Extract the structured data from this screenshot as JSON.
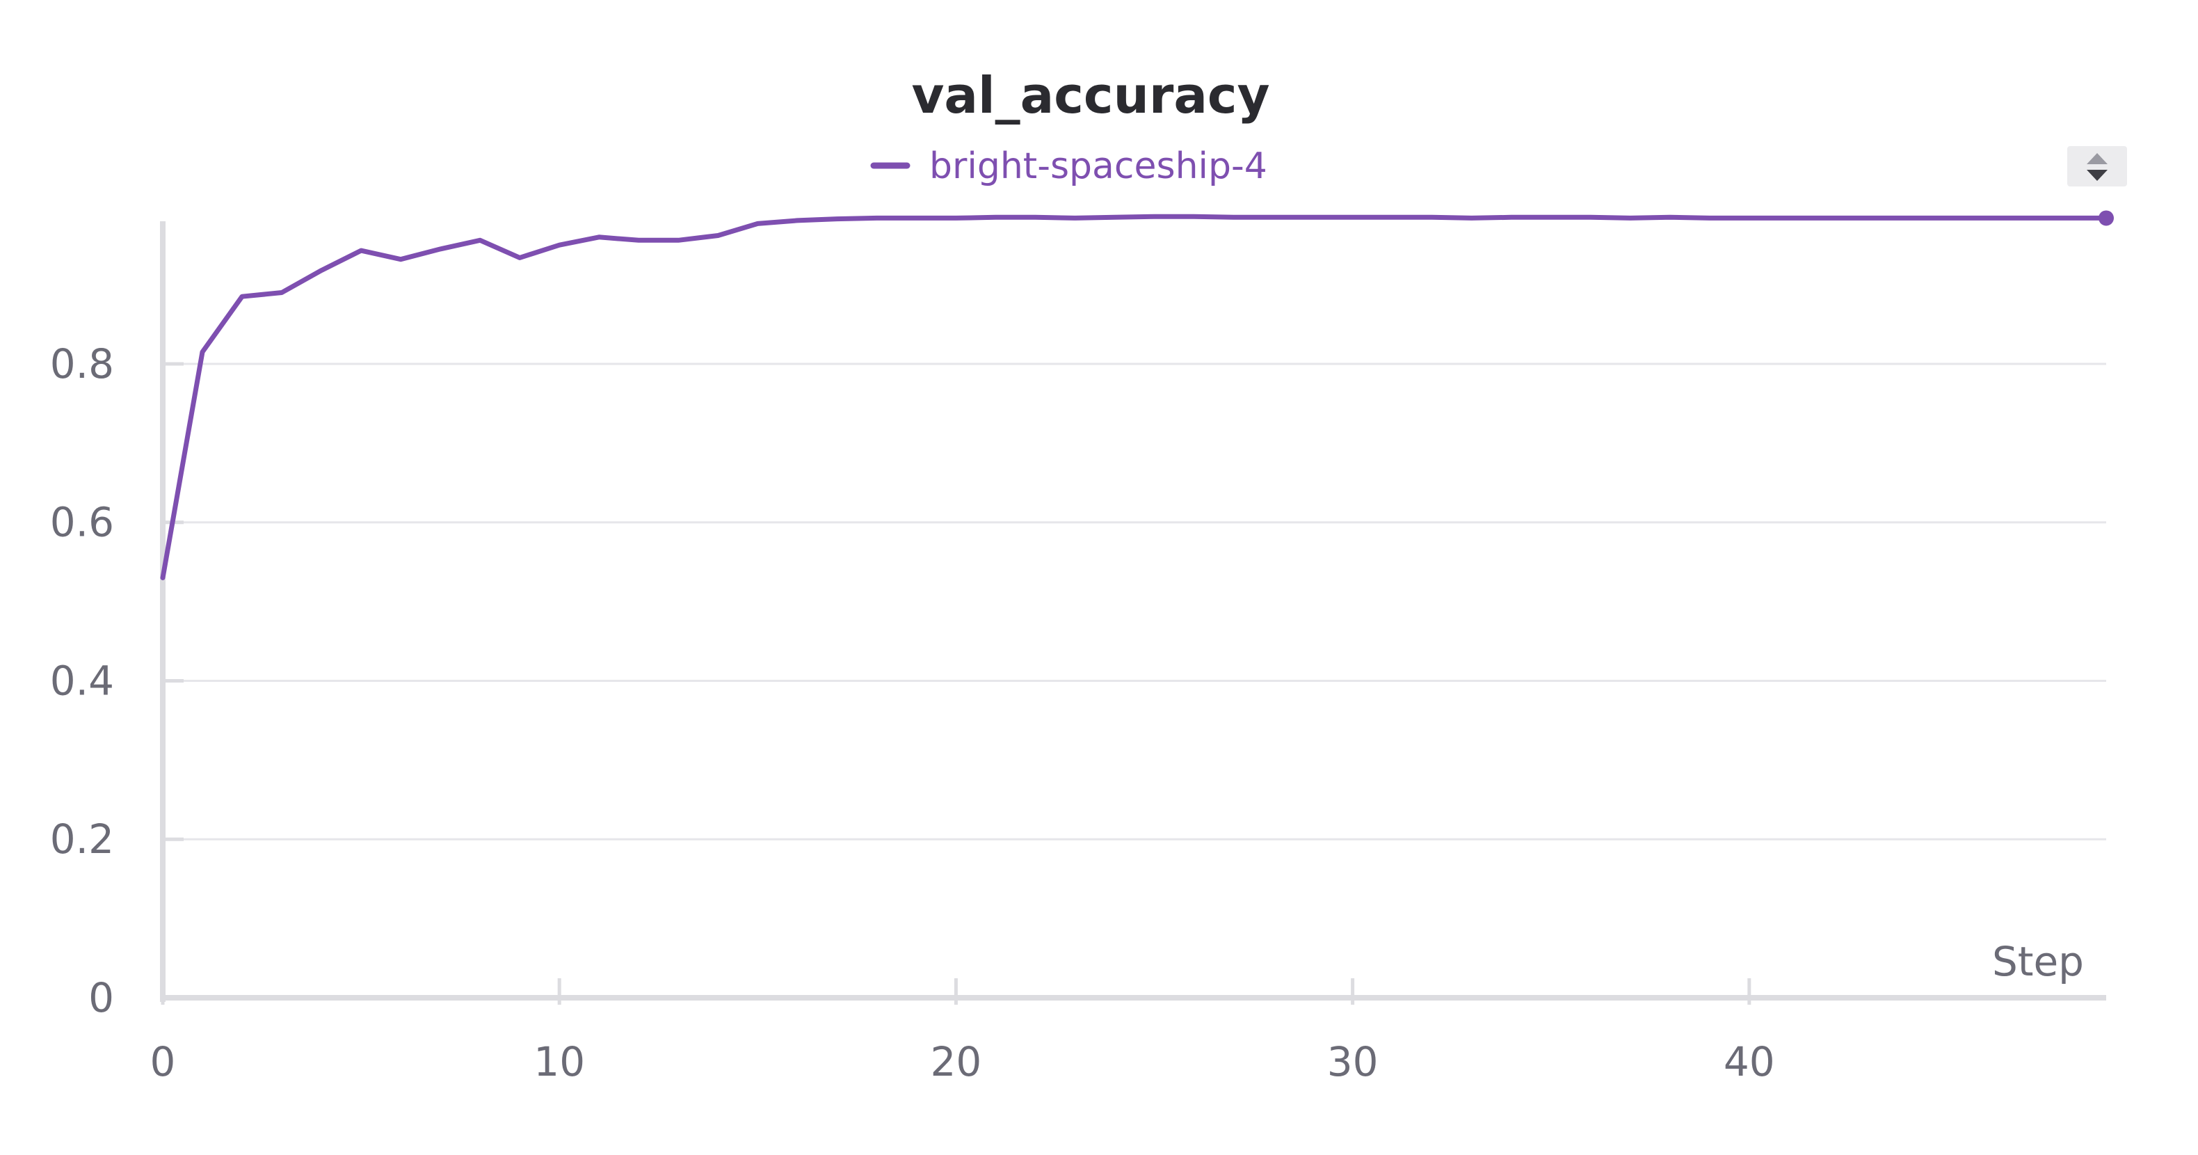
{
  "chart_data": {
    "type": "line",
    "title": "val_accuracy",
    "xlabel": "Step",
    "ylabel": "",
    "xlim": [
      0,
      49
    ],
    "ylim": [
      0,
      0.98
    ],
    "x_ticks": [
      0,
      10,
      20,
      30,
      40
    ],
    "x_tick_labels": [
      "0",
      "10",
      "20",
      "30",
      "40"
    ],
    "y_ticks": [
      0,
      0.2,
      0.4,
      0.6,
      0.8
    ],
    "y_tick_labels": [
      "0",
      "0.2",
      "0.4",
      "0.6",
      "0.8"
    ],
    "grid": true,
    "legend_position": "top-center",
    "series": [
      {
        "name": "bright-spaceship-4",
        "color": "#7e4fb0",
        "x": [
          0,
          1,
          2,
          3,
          4,
          5,
          6,
          7,
          8,
          9,
          10,
          11,
          12,
          13,
          14,
          15,
          16,
          17,
          18,
          19,
          20,
          21,
          22,
          23,
          24,
          25,
          26,
          27,
          28,
          29,
          30,
          31,
          32,
          33,
          34,
          35,
          36,
          37,
          38,
          39,
          40,
          41,
          42,
          43,
          44,
          45,
          46,
          47,
          48,
          49
        ],
        "values": [
          0.53,
          0.815,
          0.885,
          0.89,
          0.918,
          0.943,
          0.932,
          0.945,
          0.956,
          0.934,
          0.95,
          0.96,
          0.956,
          0.956,
          0.962,
          0.977,
          0.981,
          0.983,
          0.984,
          0.984,
          0.984,
          0.985,
          0.985,
          0.984,
          0.985,
          0.986,
          0.986,
          0.985,
          0.985,
          0.985,
          0.985,
          0.985,
          0.985,
          0.984,
          0.985,
          0.985,
          0.985,
          0.984,
          0.985,
          0.984,
          0.984,
          0.984,
          0.984,
          0.984,
          0.984,
          0.984,
          0.984,
          0.984,
          0.984,
          0.984
        ]
      }
    ]
  },
  "ui": {
    "sort_icon": "sort-up-down-icon",
    "accent_color": "#7e4fb0",
    "background_color": "#ffffff"
  }
}
